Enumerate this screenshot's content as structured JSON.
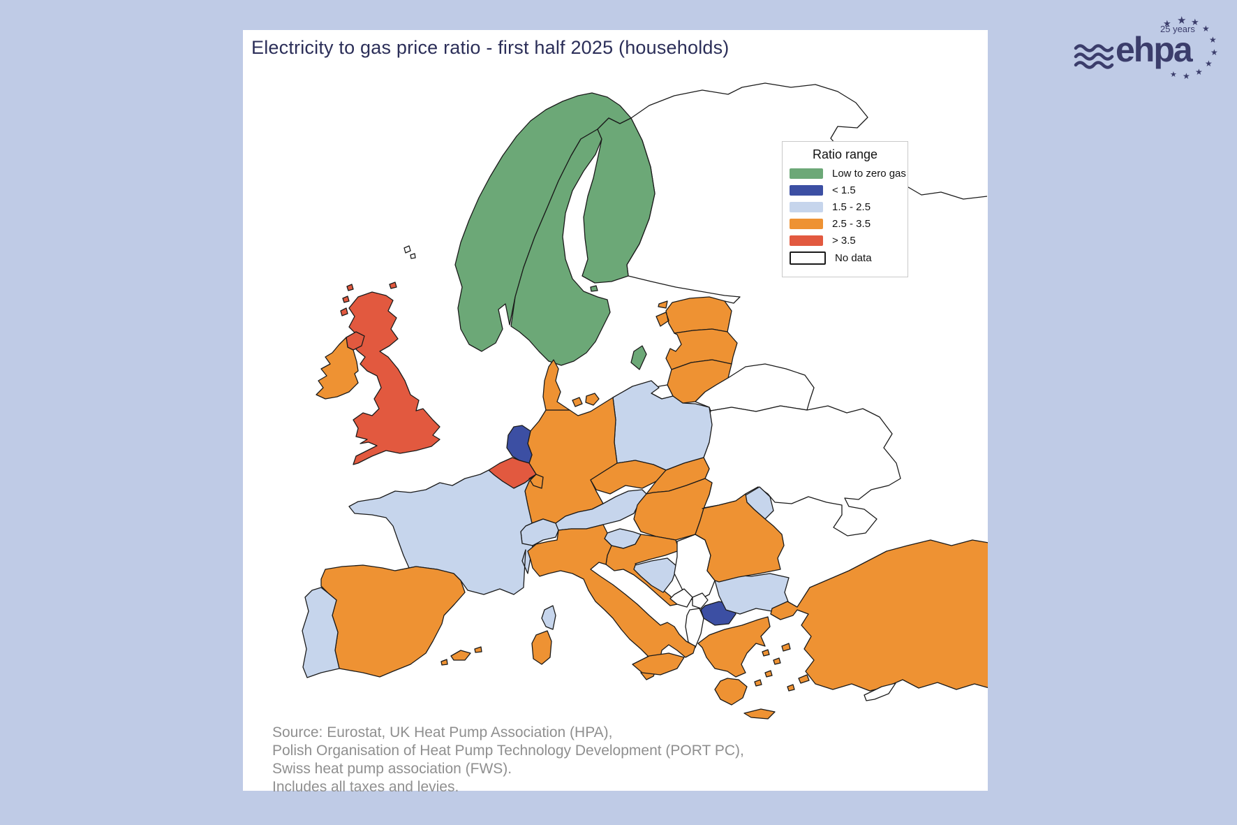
{
  "title": "Electricity to gas price ratio - first half 2025 (households)",
  "legend": {
    "title": "Ratio range",
    "items": [
      {
        "label": "Low to zero gas",
        "category": "low_zero_gas"
      },
      {
        "label": "< 1.5",
        "category": "lt_1_5"
      },
      {
        "label": "1.5 - 2.5",
        "category": "r1_5_2_5"
      },
      {
        "label": "2.5 - 3.5",
        "category": "r2_5_3_5"
      },
      {
        "label": "> 3.5",
        "category": "gt_3_5"
      },
      {
        "label": "No data",
        "category": "no_data"
      }
    ]
  },
  "categories": {
    "low_zero_gas": {
      "label": "Low to zero gas",
      "color": "#6ca877"
    },
    "lt_1_5": {
      "label": "< 1.5",
      "color": "#3c4fa3"
    },
    "r1_5_2_5": {
      "label": "1.5 - 2.5",
      "color": "#c6d5ec"
    },
    "r2_5_3_5": {
      "label": "2.5 - 3.5",
      "color": "#ee9233"
    },
    "gt_3_5": {
      "label": "> 3.5",
      "color": "#e2593f"
    },
    "no_data": {
      "label": "No data",
      "color": "#ffffff"
    }
  },
  "map": {
    "stroke_color": "#1a1a1a",
    "countries": [
      {
        "id": "norway",
        "name": "Norway",
        "category": "low_zero_gas"
      },
      {
        "id": "sweden",
        "name": "Sweden",
        "category": "low_zero_gas"
      },
      {
        "id": "finland",
        "name": "Finland",
        "category": "low_zero_gas"
      },
      {
        "id": "netherlands",
        "name": "Netherlands",
        "category": "lt_1_5"
      },
      {
        "id": "north-macedonia",
        "name": "North Macedonia",
        "category": "lt_1_5"
      },
      {
        "id": "france",
        "name": "France",
        "category": "r1_5_2_5"
      },
      {
        "id": "portugal",
        "name": "Portugal",
        "category": "r1_5_2_5"
      },
      {
        "id": "poland",
        "name": "Poland",
        "category": "r1_5_2_5"
      },
      {
        "id": "switzerland",
        "name": "Switzerland",
        "category": "r1_5_2_5"
      },
      {
        "id": "austria",
        "name": "Austria",
        "category": "r1_5_2_5"
      },
      {
        "id": "slovenia",
        "name": "Slovenia",
        "category": "r1_5_2_5"
      },
      {
        "id": "bosnia",
        "name": "Bosnia and Herzegovina",
        "category": "r1_5_2_5"
      },
      {
        "id": "bulgaria",
        "name": "Bulgaria",
        "category": "r1_5_2_5"
      },
      {
        "id": "moldova",
        "name": "Moldova",
        "category": "r1_5_2_5"
      },
      {
        "id": "corsica",
        "name": "Corsica (FR)",
        "category": "r1_5_2_5"
      },
      {
        "id": "ireland",
        "name": "Ireland",
        "category": "r2_5_3_5"
      },
      {
        "id": "spain",
        "name": "Spain",
        "category": "r2_5_3_5"
      },
      {
        "id": "germany",
        "name": "Germany",
        "category": "r2_5_3_5"
      },
      {
        "id": "denmark",
        "name": "Denmark",
        "category": "r2_5_3_5"
      },
      {
        "id": "luxembourg",
        "name": "Luxembourg",
        "category": "r2_5_3_5"
      },
      {
        "id": "czechia",
        "name": "Czechia",
        "category": "r2_5_3_5"
      },
      {
        "id": "slovakia",
        "name": "Slovakia",
        "category": "r2_5_3_5"
      },
      {
        "id": "hungary",
        "name": "Hungary",
        "category": "r2_5_3_5"
      },
      {
        "id": "croatia",
        "name": "Croatia",
        "category": "r2_5_3_5"
      },
      {
        "id": "romania",
        "name": "Romania",
        "category": "r2_5_3_5"
      },
      {
        "id": "greece",
        "name": "Greece",
        "category": "r2_5_3_5"
      },
      {
        "id": "turkey",
        "name": "Turkey",
        "category": "r2_5_3_5"
      },
      {
        "id": "italy",
        "name": "Italy",
        "category": "r2_5_3_5"
      },
      {
        "id": "estonia",
        "name": "Estonia",
        "category": "r2_5_3_5"
      },
      {
        "id": "latvia",
        "name": "Latvia",
        "category": "r2_5_3_5"
      },
      {
        "id": "lithuania",
        "name": "Lithuania",
        "category": "r2_5_3_5"
      },
      {
        "id": "united-kingdom",
        "name": "United Kingdom",
        "category": "gt_3_5"
      },
      {
        "id": "northern-ireland",
        "name": "Northern Ireland (UK)",
        "category": "gt_3_5"
      },
      {
        "id": "belgium",
        "name": "Belgium",
        "category": "gt_3_5"
      },
      {
        "id": "russia",
        "name": "Russia",
        "category": "no_data"
      },
      {
        "id": "belarus",
        "name": "Belarus",
        "category": "no_data"
      },
      {
        "id": "ukraine",
        "name": "Ukraine",
        "category": "no_data"
      },
      {
        "id": "serbia",
        "name": "Serbia",
        "category": "no_data"
      },
      {
        "id": "kosovo",
        "name": "Kosovo",
        "category": "no_data"
      },
      {
        "id": "montenegro",
        "name": "Montenegro",
        "category": "no_data"
      },
      {
        "id": "albania",
        "name": "Albania",
        "category": "no_data"
      },
      {
        "id": "kaliningrad",
        "name": "Kaliningrad (RU)",
        "category": "no_data"
      },
      {
        "id": "cyprus",
        "name": "Cyprus",
        "category": "no_data"
      },
      {
        "id": "faroe-islands",
        "name": "Faroe Islands",
        "category": "no_data"
      }
    ]
  },
  "source": {
    "lines": [
      "Source: Eurostat, UK Heat Pump Association (HPA),",
      "Polish Organisation of Heat Pump Technology Development (PORT PC),",
      "Swiss heat pump association (FWS).",
      "Includes all taxes and levies."
    ]
  },
  "logo": {
    "brand": "ehpa",
    "anniversary": "25 years",
    "color": "#3b3d6b",
    "star_glyph": "★"
  }
}
